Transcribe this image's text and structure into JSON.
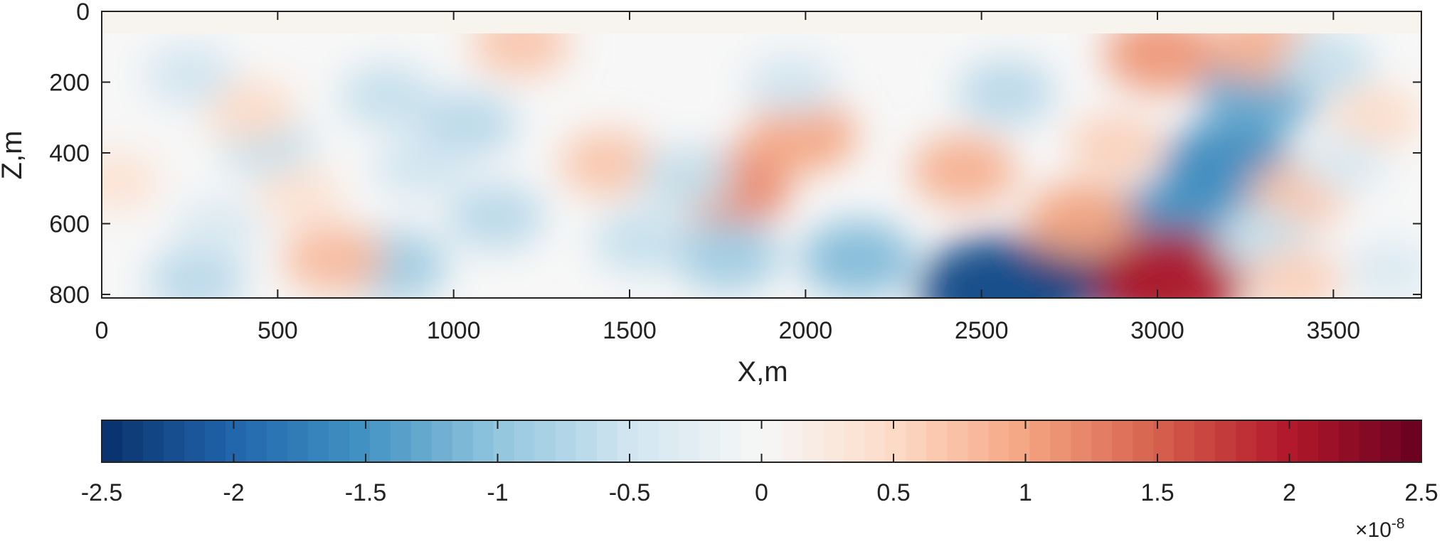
{
  "chart_data": {
    "type": "heatmap",
    "title": "",
    "xlabel": "X,m",
    "ylabel": "Z,m",
    "xlim": [
      0,
      3750
    ],
    "ylim": [
      0,
      810
    ],
    "y_reversed": true,
    "x_ticks": [
      0,
      500,
      1000,
      1500,
      2000,
      2500,
      3000,
      3500
    ],
    "y_ticks": [
      0,
      200,
      400,
      600,
      800
    ],
    "no_data_above_z": 60,
    "colormap": "diverging blue-white-red",
    "colorbar": {
      "orientation": "horizontal",
      "position": "bottom",
      "range": [
        -2.5,
        2.5
      ],
      "ticks": [
        -2.5,
        -2,
        -1.5,
        -1,
        -0.5,
        0,
        0.5,
        1,
        1.5,
        2,
        2.5
      ],
      "tick_labels": [
        "-2.5",
        "-2",
        "-1.5",
        "-1",
        "-0.5",
        "0",
        "0.5",
        "1",
        "1.5",
        "2",
        "2.5"
      ],
      "exponent_base": "×10",
      "exponent_power": "-8",
      "colors": [
        "#08306b",
        "#2166ac",
        "#4393c3",
        "#92c5de",
        "#d1e5f0",
        "#f7f7f7",
        "#fddbc7",
        "#f4a582",
        "#d6604d",
        "#b2182b",
        "#67001f"
      ]
    },
    "anomalies": [
      {
        "x": 2550,
        "z": 790,
        "value": -2.3
      },
      {
        "x": 2900,
        "z": 710,
        "value": -2.4
      },
      {
        "x": 3020,
        "z": 610,
        "value": -1.5
      },
      {
        "x": 3200,
        "z": 440,
        "value": -1.6
      },
      {
        "x": 3290,
        "z": 230,
        "value": -1.3
      },
      {
        "x": 3040,
        "z": 760,
        "value": 2.0
      },
      {
        "x": 2780,
        "z": 590,
        "value": 1.0
      },
      {
        "x": 3010,
        "z": 120,
        "value": 1.1
      },
      {
        "x": 3300,
        "z": 100,
        "value": 0.9
      },
      {
        "x": 1790,
        "z": 500,
        "value": 1.2
      },
      {
        "x": 1990,
        "z": 350,
        "value": 1.0
      },
      {
        "x": 2450,
        "z": 450,
        "value": 0.9
      },
      {
        "x": 2150,
        "z": 700,
        "value": -1.1
      },
      {
        "x": 1780,
        "z": 690,
        "value": -0.9
      },
      {
        "x": 2570,
        "z": 230,
        "value": -0.7
      },
      {
        "x": 830,
        "z": 720,
        "value": -0.9
      },
      {
        "x": 270,
        "z": 760,
        "value": -0.7
      },
      {
        "x": 660,
        "z": 700,
        "value": 0.8
      },
      {
        "x": 1120,
        "z": 580,
        "value": -0.7
      },
      {
        "x": 1440,
        "z": 430,
        "value": 0.7
      },
      {
        "x": 1530,
        "z": 650,
        "value": -0.6
      },
      {
        "x": 1190,
        "z": 90,
        "value": 0.7
      },
      {
        "x": 1040,
        "z": 320,
        "value": -0.7
      },
      {
        "x": 810,
        "z": 240,
        "value": -0.6
      },
      {
        "x": 470,
        "z": 380,
        "value": -0.6
      },
      {
        "x": 420,
        "z": 280,
        "value": 0.5
      },
      {
        "x": 250,
        "z": 180,
        "value": -0.5
      },
      {
        "x": 1660,
        "z": 470,
        "value": -0.6
      },
      {
        "x": 1960,
        "z": 210,
        "value": -0.5
      },
      {
        "x": 3400,
        "z": 520,
        "value": 0.7
      },
      {
        "x": 3480,
        "z": 150,
        "value": -0.6
      },
      {
        "x": 3620,
        "z": 300,
        "value": 0.5
      },
      {
        "x": 3300,
        "z": 650,
        "value": -0.6
      },
      {
        "x": 3390,
        "z": 760,
        "value": 0.6
      },
      {
        "x": 2880,
        "z": 380,
        "value": 0.6
      },
      {
        "x": 3530,
        "z": 430,
        "value": -0.4
      },
      {
        "x": 3660,
        "z": 730,
        "value": -0.4
      },
      {
        "x": 40,
        "z": 480,
        "value": 0.4
      },
      {
        "x": 560,
        "z": 520,
        "value": 0.4
      },
      {
        "x": 330,
        "z": 610,
        "value": -0.4
      },
      {
        "x": 900,
        "z": 440,
        "value": -0.5
      }
    ]
  }
}
